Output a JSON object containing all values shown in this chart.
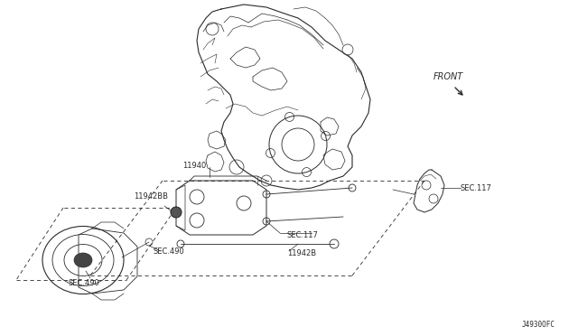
{
  "bg_color": "#ffffff",
  "line_color": "#2a2a2a",
  "fig_width": 6.4,
  "fig_height": 3.72,
  "dpi": 100,
  "diagram_code": "J4930OFC",
  "labels": {
    "front": "FRONT",
    "11940": "11940",
    "11942BB": "11942BB",
    "11942B": "11942B",
    "SEC117_1": "SEC.117",
    "SEC117_2": "SEC.117",
    "SEC490_1": "SEC.490",
    "SEC490_2": "SEC.490"
  }
}
